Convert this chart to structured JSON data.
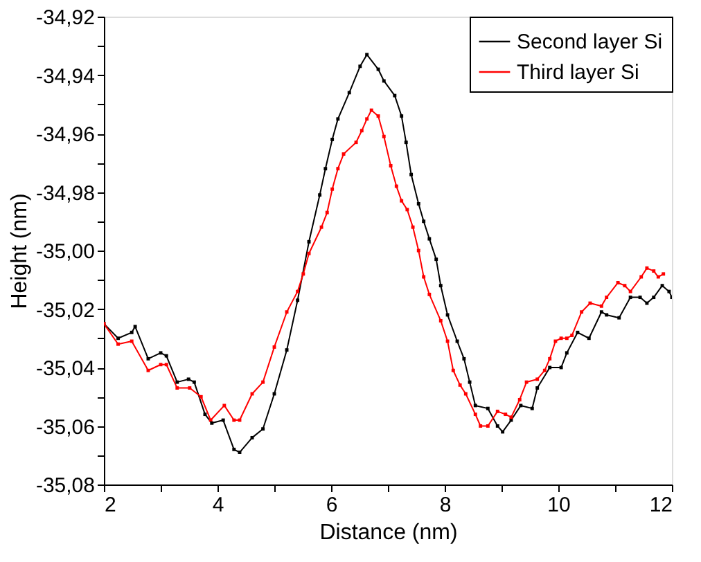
{
  "chart_data": {
    "type": "line",
    "xlabel": "Distance (nm)",
    "ylabel": "Height (nm)",
    "xlim": [
      2,
      12
    ],
    "ylim": [
      -35.08,
      -34.92
    ],
    "xticks": [
      2,
      {
        "value": 3,
        "label": null
      },
      4,
      {
        "value": 5,
        "label": null
      },
      6,
      {
        "value": 7,
        "label": null
      },
      8,
      {
        "value": 9,
        "label": null
      },
      10,
      {
        "value": 11,
        "label": null
      },
      12
    ],
    "yticks": [
      {
        "value": -35.08,
        "label": "-35,08"
      },
      {
        "value": -35.07,
        "label": null
      },
      {
        "value": -35.06,
        "label": "-35,06"
      },
      {
        "value": -35.05,
        "label": null
      },
      {
        "value": -35.04,
        "label": "-35,04"
      },
      {
        "value": -35.03,
        "label": null
      },
      {
        "value": -35.02,
        "label": "-35,02"
      },
      {
        "value": -35.01,
        "label": null
      },
      {
        "value": -35.0,
        "label": "-35,00"
      },
      {
        "value": -34.99,
        "label": null
      },
      {
        "value": -34.98,
        "label": "-34,98"
      },
      {
        "value": -34.97,
        "label": null
      },
      {
        "value": -34.96,
        "label": "-34,96"
      },
      {
        "value": -34.95,
        "label": null
      },
      {
        "value": -34.94,
        "label": "-34,94"
      },
      {
        "value": -34.93,
        "label": null
      },
      {
        "value": -34.92,
        "label": "-34,92"
      }
    ],
    "grid": false,
    "legend": "top right",
    "marker": "square",
    "line_style": "solid",
    "series": [
      {
        "name": "Second layer Si",
        "color": "#000000",
        "x": [
          2.0,
          2.25,
          2.49,
          2.55,
          2.78,
          3.0,
          3.1,
          3.29,
          3.49,
          3.59,
          3.78,
          3.9,
          4.1,
          4.29,
          4.39,
          4.61,
          4.8,
          5.0,
          5.22,
          5.41,
          5.61,
          5.8,
          5.9,
          6.02,
          6.12,
          6.32,
          6.51,
          6.63,
          6.83,
          6.93,
          7.12,
          7.24,
          7.32,
          7.41,
          7.54,
          7.63,
          7.73,
          7.85,
          7.93,
          8.05,
          8.22,
          8.34,
          8.44,
          8.54,
          8.76,
          8.93,
          9.02,
          9.17,
          9.34,
          9.54,
          9.63,
          9.85,
          10.05,
          10.15,
          10.34,
          10.54,
          10.76,
          10.85,
          11.07,
          11.27,
          11.44,
          11.56,
          11.68,
          11.83,
          11.95,
          12.0
        ],
        "values": [
          -35.025,
          -35.03,
          -35.028,
          -35.026,
          -35.037,
          -35.035,
          -35.036,
          -35.045,
          -35.044,
          -35.045,
          -35.056,
          -35.059,
          -35.058,
          -35.068,
          -35.069,
          -35.064,
          -35.061,
          -35.049,
          -35.034,
          -35.017,
          -34.997,
          -34.981,
          -34.972,
          -34.962,
          -34.955,
          -34.946,
          -34.937,
          -34.933,
          -34.938,
          -34.942,
          -34.947,
          -34.954,
          -34.963,
          -34.974,
          -34.984,
          -34.99,
          -34.996,
          -35.003,
          -35.012,
          -35.022,
          -35.031,
          -35.037,
          -35.045,
          -35.053,
          -35.054,
          -35.06,
          -35.062,
          -35.058,
          -35.053,
          -35.054,
          -35.047,
          -35.04,
          -35.04,
          -35.035,
          -35.028,
          -35.03,
          -35.021,
          -35.022,
          -35.023,
          -35.016,
          -35.016,
          -35.018,
          -35.016,
          -35.012,
          -35.014,
          -35.016
        ]
      },
      {
        "name": "Third layer Si",
        "color": "#ff0000",
        "x": [
          2.0,
          2.25,
          2.49,
          2.78,
          3.0,
          3.1,
          3.29,
          3.51,
          3.71,
          3.88,
          4.12,
          4.29,
          4.39,
          4.61,
          4.8,
          5.0,
          5.22,
          5.41,
          5.51,
          5.61,
          5.83,
          5.93,
          6.02,
          6.12,
          6.22,
          6.44,
          6.54,
          6.63,
          6.71,
          6.83,
          6.93,
          7.05,
          7.15,
          7.24,
          7.34,
          7.44,
          7.54,
          7.63,
          7.73,
          7.93,
          8.05,
          8.15,
          8.27,
          8.37,
          8.54,
          8.63,
          8.76,
          8.93,
          9.07,
          9.17,
          9.32,
          9.44,
          9.63,
          9.76,
          9.85,
          9.95,
          10.05,
          10.15,
          10.24,
          10.41,
          10.56,
          10.76,
          10.85,
          11.05,
          11.17,
          11.27,
          11.46,
          11.56,
          11.68,
          11.76,
          11.85
        ],
        "values": [
          -35.025,
          -35.032,
          -35.031,
          -35.041,
          -35.039,
          -35.039,
          -35.047,
          -35.047,
          -35.05,
          -35.058,
          -35.053,
          -35.058,
          -35.058,
          -35.049,
          -35.045,
          -35.033,
          -35.021,
          -35.014,
          -35.008,
          -35.001,
          -34.992,
          -34.987,
          -34.979,
          -34.972,
          -34.967,
          -34.963,
          -34.959,
          -34.955,
          -34.952,
          -34.954,
          -34.961,
          -34.971,
          -34.978,
          -34.983,
          -34.986,
          -34.992,
          -35.0,
          -35.009,
          -35.015,
          -35.024,
          -35.031,
          -35.041,
          -35.046,
          -35.049,
          -35.056,
          -35.06,
          -35.06,
          -35.055,
          -35.056,
          -35.057,
          -35.051,
          -35.045,
          -35.044,
          -35.041,
          -35.037,
          -35.031,
          -35.03,
          -35.03,
          -35.029,
          -35.021,
          -35.018,
          -35.019,
          -35.016,
          -35.011,
          -35.012,
          -35.014,
          -35.009,
          -35.006,
          -35.007,
          -35.009,
          -35.008
        ]
      }
    ]
  }
}
